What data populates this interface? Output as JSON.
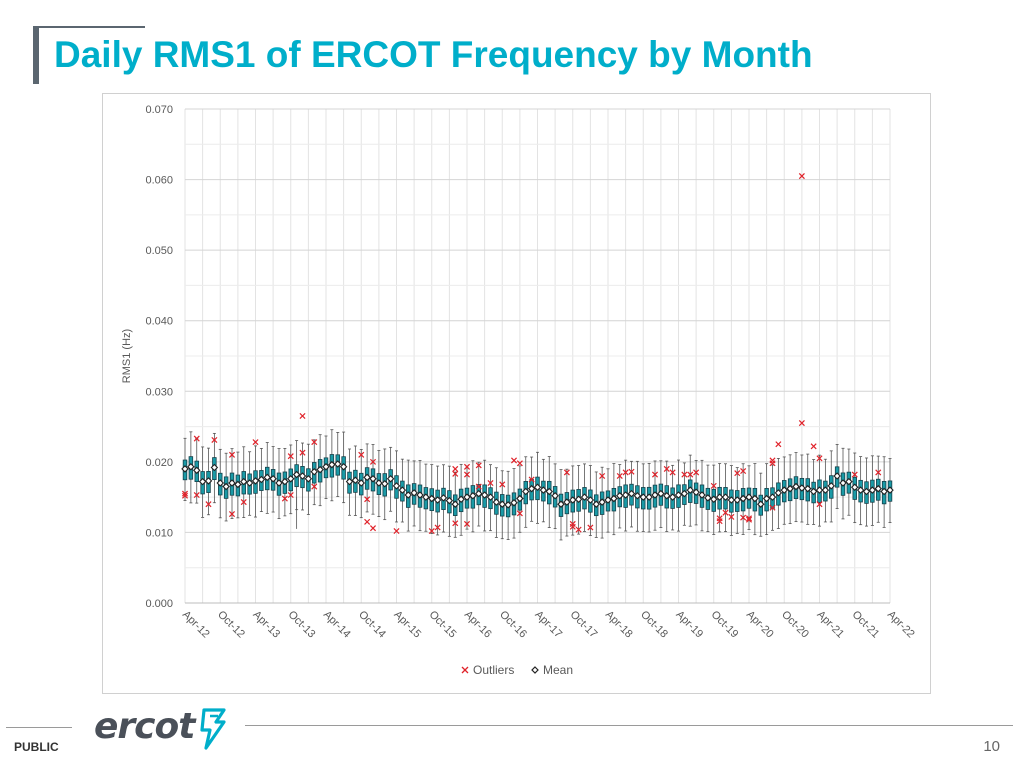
{
  "page": {
    "title": "Daily RMS1 of ERCOT Frequency by Month",
    "footer_label": "PUBLIC",
    "page_number": "10",
    "logo_text": "ercot",
    "accent_color": "#00aeca"
  },
  "chart_data": {
    "type": "box",
    "title": "",
    "xlabel": "",
    "ylabel": "RMS1 (Hz)",
    "ylim": [
      0,
      0.07
    ],
    "y_ticks": [
      "0.000",
      "0.010",
      "0.020",
      "0.030",
      "0.040",
      "0.050",
      "0.060",
      "0.070"
    ],
    "x_tick_labels": [
      "Apr-12",
      "Oct-12",
      "Apr-13",
      "Oct-13",
      "Apr-14",
      "Oct-14",
      "Apr-15",
      "Oct-15",
      "Apr-16",
      "Oct-16",
      "Apr-17",
      "Oct-17",
      "Apr-18",
      "Oct-18",
      "Apr-19",
      "Oct-19",
      "Apr-20",
      "Oct-20",
      "Apr-21",
      "Oct-21",
      "Apr-22"
    ],
    "grid": true,
    "legend_position": "bottom",
    "legend": [
      {
        "label": "Outliers",
        "marker": "x",
        "color": "#e0222a"
      },
      {
        "label": "Mean",
        "marker": "diamond",
        "color": "#222222"
      }
    ],
    "box_color": "#1a9aa6",
    "box_edge_color": "#16414a",
    "first_month": "Apr-12",
    "months": 121,
    "mean": [
      0.019,
      0.0193,
      0.0188,
      0.0172,
      0.0173,
      0.0192,
      0.017,
      0.0165,
      0.017,
      0.0168,
      0.0172,
      0.017,
      0.0173,
      0.0175,
      0.0178,
      0.0176,
      0.017,
      0.0172,
      0.0176,
      0.0182,
      0.018,
      0.0176,
      0.0186,
      0.0189,
      0.0193,
      0.0196,
      0.0197,
      0.0193,
      0.0172,
      0.0174,
      0.017,
      0.0178,
      0.0176,
      0.017,
      0.0169,
      0.0176,
      0.0166,
      0.016,
      0.0153,
      0.0156,
      0.0153,
      0.015,
      0.0148,
      0.0146,
      0.0149,
      0.0145,
      0.014,
      0.0147,
      0.015,
      0.0152,
      0.0155,
      0.0153,
      0.015,
      0.0143,
      0.014,
      0.0139,
      0.0142,
      0.0148,
      0.0158,
      0.0162,
      0.0164,
      0.016,
      0.0158,
      0.0152,
      0.014,
      0.0143,
      0.0146,
      0.0147,
      0.015,
      0.0146,
      0.014,
      0.0143,
      0.0146,
      0.0148,
      0.0152,
      0.0153,
      0.0155,
      0.0152,
      0.015,
      0.015,
      0.0153,
      0.0155,
      0.0152,
      0.015,
      0.0153,
      0.0155,
      0.016,
      0.0157,
      0.0153,
      0.0149,
      0.0147,
      0.015,
      0.015,
      0.0146,
      0.0146,
      0.0148,
      0.015,
      0.0148,
      0.014,
      0.0148,
      0.015,
      0.0156,
      0.016,
      0.0162,
      0.0165,
      0.0163,
      0.0162,
      0.0158,
      0.016,
      0.016,
      0.0166,
      0.018,
      0.017,
      0.0172,
      0.0164,
      0.016,
      0.0158,
      0.016,
      0.0162,
      0.0158,
      0.016
    ],
    "outliers": [
      {
        "x": "Apr-12",
        "y": 0.0155
      },
      {
        "x": "Apr-12",
        "y": 0.0152
      },
      {
        "x": "Jun-12",
        "y": 0.0233
      },
      {
        "x": "Jun-12",
        "y": 0.0153
      },
      {
        "x": "Aug-12",
        "y": 0.014
      },
      {
        "x": "Sep-12",
        "y": 0.0231
      },
      {
        "x": "Dec-12",
        "y": 0.021
      },
      {
        "x": "Dec-12",
        "y": 0.0126
      },
      {
        "x": "Feb-13",
        "y": 0.0143
      },
      {
        "x": "Apr-13",
        "y": 0.0228
      },
      {
        "x": "Sep-13",
        "y": 0.0148
      },
      {
        "x": "Oct-13",
        "y": 0.0153
      },
      {
        "x": "Oct-13",
        "y": 0.0208
      },
      {
        "x": "Dec-13",
        "y": 0.0265
      },
      {
        "x": "Dec-13",
        "y": 0.0213
      },
      {
        "x": "Feb-14",
        "y": 0.0228
      },
      {
        "x": "Feb-14",
        "y": 0.0165
      },
      {
        "x": "Oct-14",
        "y": 0.021
      },
      {
        "x": "Nov-14",
        "y": 0.0115
      },
      {
        "x": "Nov-14",
        "y": 0.0147
      },
      {
        "x": "Dec-14",
        "y": 0.0106
      },
      {
        "x": "Dec-14",
        "y": 0.02
      },
      {
        "x": "Apr-15",
        "y": 0.0102
      },
      {
        "x": "Oct-15",
        "y": 0.0102
      },
      {
        "x": "Nov-15",
        "y": 0.0107
      },
      {
        "x": "Feb-16",
        "y": 0.0113
      },
      {
        "x": "Feb-16",
        "y": 0.019
      },
      {
        "x": "Feb-16",
        "y": 0.0183
      },
      {
        "x": "Apr-16",
        "y": 0.0193
      },
      {
        "x": "Apr-16",
        "y": 0.0182
      },
      {
        "x": "Apr-16",
        "y": 0.0112
      },
      {
        "x": "Jun-16",
        "y": 0.0195
      },
      {
        "x": "Jun-16",
        "y": 0.0165
      },
      {
        "x": "Aug-16",
        "y": 0.017
      },
      {
        "x": "Oct-16",
        "y": 0.0168
      },
      {
        "x": "Dec-16",
        "y": 0.0202
      },
      {
        "x": "Jan-17",
        "y": 0.0198
      },
      {
        "x": "Jan-17",
        "y": 0.0127
      },
      {
        "x": "Mar-17",
        "y": 0.0175
      },
      {
        "x": "Sep-17",
        "y": 0.0185
      },
      {
        "x": "Oct-17",
        "y": 0.0112
      },
      {
        "x": "Oct-17",
        "y": 0.0108
      },
      {
        "x": "Nov-17",
        "y": 0.0104
      },
      {
        "x": "Jan-18",
        "y": 0.0107
      },
      {
        "x": "Mar-18",
        "y": 0.018
      },
      {
        "x": "Jun-18",
        "y": 0.018
      },
      {
        "x": "Jul-18",
        "y": 0.0185
      },
      {
        "x": "Aug-18",
        "y": 0.0186
      },
      {
        "x": "Dec-18",
        "y": 0.0182
      },
      {
        "x": "Feb-19",
        "y": 0.019
      },
      {
        "x": "Mar-19",
        "y": 0.0185
      },
      {
        "x": "May-19",
        "y": 0.0182
      },
      {
        "x": "Jun-19",
        "y": 0.0182
      },
      {
        "x": "Jul-19",
        "y": 0.0185
      },
      {
        "x": "Oct-19",
        "y": 0.0166
      },
      {
        "x": "Nov-19",
        "y": 0.012
      },
      {
        "x": "Nov-19",
        "y": 0.0116
      },
      {
        "x": "Dec-19",
        "y": 0.0128
      },
      {
        "x": "Jan-20",
        "y": 0.0122
      },
      {
        "x": "Feb-20",
        "y": 0.0184
      },
      {
        "x": "Mar-20",
        "y": 0.0121
      },
      {
        "x": "Mar-20",
        "y": 0.0187
      },
      {
        "x": "Apr-20",
        "y": 0.0118
      },
      {
        "x": "Apr-20",
        "y": 0.012
      },
      {
        "x": "Aug-20",
        "y": 0.0202
      },
      {
        "x": "Aug-20",
        "y": 0.0198
      },
      {
        "x": "Aug-20",
        "y": 0.0135
      },
      {
        "x": "Sep-20",
        "y": 0.0225
      },
      {
        "x": "Jan-21",
        "y": 0.0605
      },
      {
        "x": "Jan-21",
        "y": 0.0255
      },
      {
        "x": "Mar-21",
        "y": 0.0222
      },
      {
        "x": "Apr-21",
        "y": 0.0205
      },
      {
        "x": "Apr-21",
        "y": 0.014
      },
      {
        "x": "Oct-21",
        "y": 0.0182
      },
      {
        "x": "Feb-22",
        "y": 0.0185
      }
    ]
  }
}
